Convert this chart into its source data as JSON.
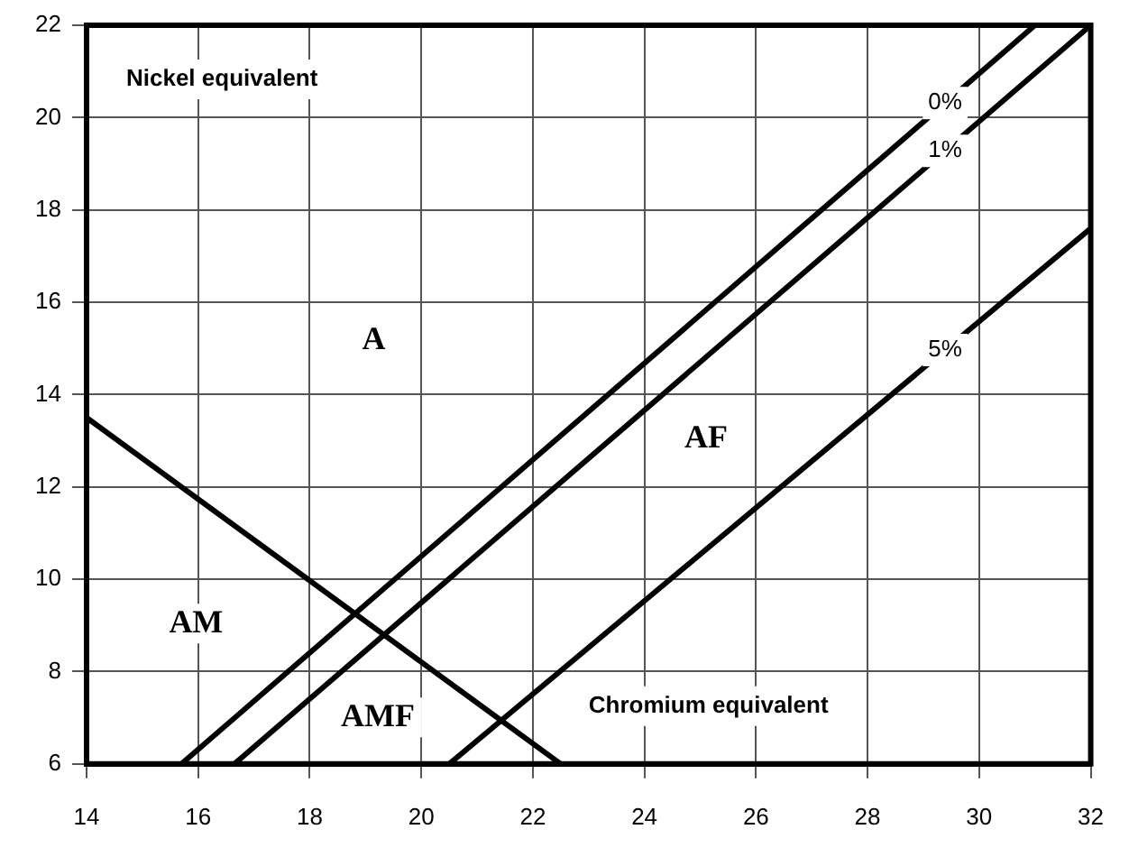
{
  "chart_data": {
    "type": "line",
    "xlabel": "Chromium equivalent",
    "ylabel": "Nickel equivalent",
    "xlim": [
      14,
      32
    ],
    "ylim": [
      6,
      22
    ],
    "xticks": [
      14,
      16,
      18,
      20,
      22,
      24,
      26,
      28,
      30,
      32
    ],
    "yticks": [
      6,
      8,
      10,
      12,
      14,
      16,
      18,
      20,
      22
    ],
    "grid": true,
    "legend": false,
    "marker": "none",
    "line_style": "solid",
    "series": [
      {
        "color": "#000000",
        "x": [
          14,
          22.5
        ],
        "values": [
          13.5,
          6
        ]
      },
      {
        "name": "0%",
        "color": "#000000",
        "x": [
          15.7,
          31.0
        ],
        "values": [
          6,
          22
        ]
      },
      {
        "name": "1%",
        "color": "#000000",
        "x": [
          16.65,
          32
        ],
        "values": [
          6,
          22
        ]
      },
      {
        "name": "5%",
        "color": "#000000",
        "x": [
          20.5,
          32
        ],
        "values": [
          6,
          17.6
        ]
      }
    ],
    "annotations": [
      "A",
      "AF",
      "AM",
      "AMF"
    ]
  }
}
